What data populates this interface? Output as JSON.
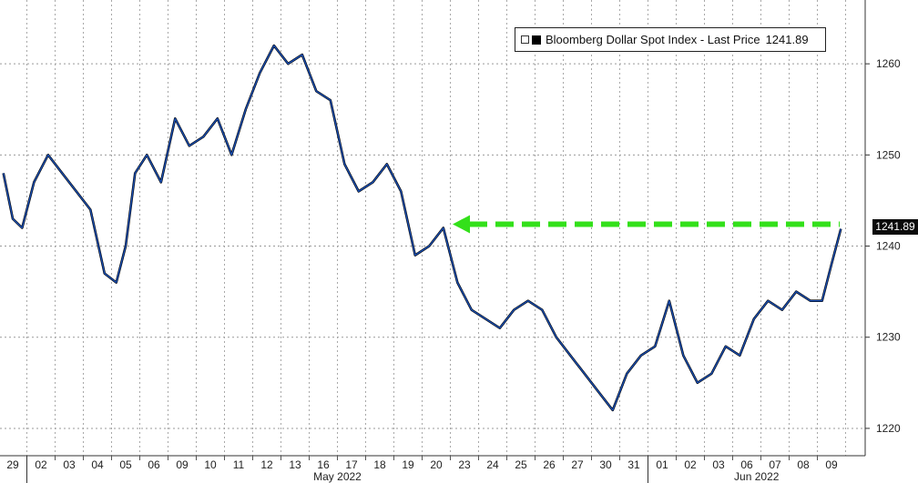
{
  "chart_data": {
    "type": "line",
    "legend": {
      "label": "Bloomberg Dollar Spot Index - Last Price",
      "last_value": "1241.89",
      "placement": "top-right"
    },
    "last_price_label": "1241.89",
    "ylim": [
      1217,
      1267
    ],
    "y_ticks": [
      "1220",
      "1230",
      "1240",
      "1250",
      "1260"
    ],
    "y_axis_side": "right",
    "grid": true,
    "x_tick_labels": [
      "29",
      "02",
      "03",
      "04",
      "05",
      "06",
      "09",
      "10",
      "11",
      "12",
      "13",
      "16",
      "17",
      "18",
      "19",
      "20",
      "23",
      "24",
      "25",
      "26",
      "27",
      "30",
      "31",
      "01",
      "02",
      "03",
      "06",
      "07",
      "08",
      "09"
    ],
    "month_labels": [
      "May 2022",
      "Jun 2022"
    ],
    "series": [
      {
        "color": "#1a4fb4",
        "annotation": "green dashed arrow pointing back to the 1242 level",
        "points": [
          [
            "29",
            1248
          ],
          [
            "29",
            1243
          ],
          [
            "29",
            1242
          ],
          [
            "02",
            1247
          ],
          [
            "02",
            1250
          ],
          [
            "03",
            1248
          ],
          [
            "03",
            1246
          ],
          [
            "04",
            1244
          ],
          [
            "04",
            1237
          ],
          [
            "05",
            1236
          ],
          [
            "05",
            1240
          ],
          [
            "05",
            1248
          ],
          [
            "06",
            1250
          ],
          [
            "06",
            1247
          ],
          [
            "09",
            1254
          ],
          [
            "09",
            1251
          ],
          [
            "10",
            1252
          ],
          [
            "10",
            1254
          ],
          [
            "11",
            1250
          ],
          [
            "11",
            1255
          ],
          [
            "12",
            1259
          ],
          [
            "12",
            1262
          ],
          [
            "13",
            1260
          ],
          [
            "13",
            1261
          ],
          [
            "16",
            1257
          ],
          [
            "16",
            1256
          ],
          [
            "17",
            1249
          ],
          [
            "17",
            1246
          ],
          [
            "18",
            1247
          ],
          [
            "18",
            1249
          ],
          [
            "19",
            1246
          ],
          [
            "19",
            1239
          ],
          [
            "20",
            1240
          ],
          [
            "20",
            1242
          ],
          [
            "23",
            1236
          ],
          [
            "23",
            1233
          ],
          [
            "24",
            1232
          ],
          [
            "24",
            1231
          ],
          [
            "25",
            1233
          ],
          [
            "25",
            1234
          ],
          [
            "26",
            1233
          ],
          [
            "26",
            1230
          ],
          [
            "27",
            1228
          ],
          [
            "27",
            1226
          ],
          [
            "30",
            1224
          ],
          [
            "30",
            1222
          ],
          [
            "31",
            1226
          ],
          [
            "31",
            1228
          ],
          [
            "01",
            1229
          ],
          [
            "01",
            1234
          ],
          [
            "02",
            1228
          ],
          [
            "02",
            1225
          ],
          [
            "03",
            1226
          ],
          [
            "03",
            1229
          ],
          [
            "06",
            1228
          ],
          [
            "06",
            1232
          ],
          [
            "07",
            1234
          ],
          [
            "07",
            1233
          ],
          [
            "08",
            1235
          ],
          [
            "08",
            1234
          ],
          [
            "09",
            1234
          ],
          [
            "09",
            1238
          ],
          [
            "09",
            1241.89
          ]
        ]
      }
    ]
  }
}
